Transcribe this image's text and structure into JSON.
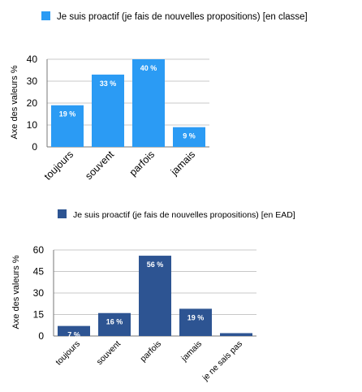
{
  "chart_data": [
    {
      "type": "bar",
      "legend": "Je suis proactif (je fais de nouvelles propositions) [en classe]",
      "color": "#2B9BF4",
      "ylabel": "Axe des valeurs %",
      "xlabel": "",
      "ylim": [
        0,
        40
      ],
      "yticks": [
        "0",
        "10",
        "20",
        "30",
        "40"
      ],
      "categories": [
        "toujours",
        "souvent",
        "parfois",
        "jamais"
      ],
      "values": [
        19,
        33,
        40,
        9
      ],
      "data_labels": [
        "19 %",
        "33 %",
        "40 %",
        "9 %"
      ],
      "grid": true,
      "legend_position": "top"
    },
    {
      "type": "bar",
      "legend": "Je suis proactif (je fais de nouvelles propositions) [en EAD]",
      "color": "#2D5492",
      "ylabel": "Axe des valeurs %",
      "xlabel": "",
      "ylim": [
        0,
        60
      ],
      "yticks": [
        "0",
        "15",
        "30",
        "45",
        "60"
      ],
      "categories": [
        "toujours",
        "souvent",
        "parfois",
        "jamais",
        "je ne sais pas"
      ],
      "values": [
        7,
        16,
        56,
        19,
        2
      ],
      "data_labels": [
        "7 %",
        "16 %",
        "56 %",
        "19 %",
        ""
      ],
      "grid": true,
      "legend_position": "top"
    }
  ]
}
